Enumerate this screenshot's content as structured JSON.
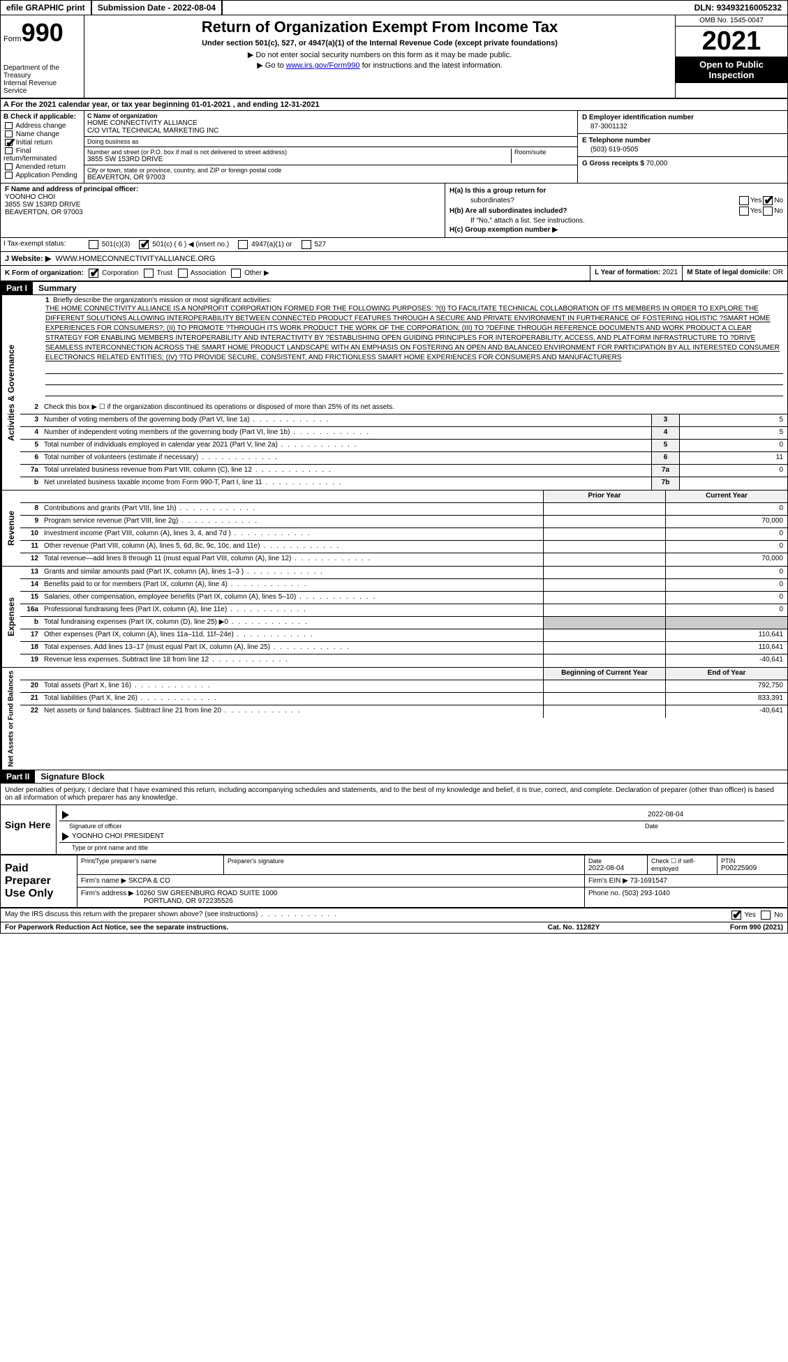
{
  "topbar": {
    "efile": "efile GRAPHIC print",
    "submission_label": "Submission Date - ",
    "submission_date": "2022-08-04",
    "dln_label": "DLN: ",
    "dln": "93493216005232"
  },
  "header": {
    "form_label": "Form",
    "form_number": "990",
    "dept": "Department of the Treasury\nInternal Revenue Service",
    "title": "Return of Organization Exempt From Income Tax",
    "subtitle": "Under section 501(c), 527, or 4947(a)(1) of the Internal Revenue Code (except private foundations)",
    "instr1": "▶ Do not enter social security numbers on this form as it may be made public.",
    "instr2_pre": "▶ Go to ",
    "instr2_link": "www.irs.gov/Form990",
    "instr2_post": " for instructions and the latest information.",
    "omb": "OMB No. 1545-0047",
    "year": "2021",
    "inspection": "Open to Public Inspection"
  },
  "row_a": "A For the 2021 calendar year, or tax year beginning 01-01-2021    , and ending 12-31-2021",
  "section_b": {
    "head": "B Check if applicable:",
    "items": [
      "Address change",
      "Name change",
      "Initial return",
      "Final return/terminated",
      "Amended return",
      "Application Pending"
    ],
    "checked_index": 2
  },
  "section_c": {
    "name_label": "C Name of organization",
    "name1": "HOME CONNECTIVITY ALLIANCE",
    "name2": "C/O VITAL TECHNICAL MARKETING INC",
    "dba_label": "Doing business as",
    "dba": "",
    "addr_label": "Number and street (or P.O. box if mail is not delivered to street address)",
    "addr": "3855 SW 153RD DRIVE",
    "room_label": "Room/suite",
    "room": "",
    "city_label": "City or town, state or province, country, and ZIP or foreign postal code",
    "city": "BEAVERTON, OR  97003"
  },
  "section_d": {
    "label": "D Employer identification number",
    "val": "87-3001132"
  },
  "section_e": {
    "label": "E Telephone number",
    "val": "(503) 619-0505"
  },
  "section_g": {
    "label": "G Gross receipts $ ",
    "val": "70,000"
  },
  "section_f": {
    "label": "F  Name and address of principal officer:",
    "name": "YOONHO CHOI",
    "addr1": "3855 SW 153RD DRIVE",
    "addr2": "BEAVERTON, OR  97003"
  },
  "section_h": {
    "ha_label": "H(a)  Is this a group return for",
    "ha_label2": "subordinates?",
    "hb_label": "H(b)  Are all subordinates included?",
    "hb_note": "If \"No,\" attach a list. See instructions.",
    "hc_label": "H(c)  Group exemption number ▶",
    "yes": "Yes",
    "no": "No"
  },
  "row_i": {
    "label": "I    Tax-exempt status:",
    "opts": [
      "501(c)(3)",
      "501(c) ( 6 ) ◀ (insert no.)",
      "4947(a)(1) or",
      "527"
    ],
    "checked": 1
  },
  "row_j": {
    "label": "J   Website: ▶",
    "val": "WWW.HOMECONNECTIVITYALLIANCE.ORG"
  },
  "row_k": {
    "label": "K Form of organization:",
    "opts": [
      "Corporation",
      "Trust",
      "Association",
      "Other ▶"
    ],
    "checked": 0
  },
  "row_l": {
    "label": "L Year of formation: ",
    "val": "2021"
  },
  "row_m": {
    "label": "M State of legal domicile: ",
    "val": "OR"
  },
  "part1": {
    "head": "Part I",
    "title": "Summary"
  },
  "line1": {
    "num": "1",
    "label": "Briefly describe the organization's mission or most significant activities:",
    "text": "THE HOME CONNECTIVITY ALLIANCE IS A NONPROFIT CORPORATION FORMED FOR THE FOLLOWING PURPOSES: ?(I) TO FACILITATE TECHNICAL COLLABORATION OF ITS MEMBERS IN ORDER TO EXPLORE THE DIFFERENT SOLUTIONS ALLOWING INTEROPERABILITY BETWEEN CONNECTED PRODUCT FEATURES THROUGH A SECURE AND PRIVATE ENVIRONMENT IN FURTHERANCE OF FOSTERING HOLISTIC ?SMART HOME EXPERIENCES FOR CONSUMERS?; (II) TO PROMOTE ?THROUGH ITS WORK PRODUCT THE WORK OF THE CORPORATION; (III) TO ?DEFINE THROUGH REFERENCE DOCUMENTS AND WORK PRODUCT A CLEAR STRATEGY FOR ENABLING MEMBERS INTEROPERABILITY AND INTERACTIVITY BY ?ESTABLISHING OPEN GUIDING PRINCIPLES FOR INTEROPERABILITY, ACCESS, AND PLATFORM INFRASTRUCTURE TO ?DRIVE SEAMLESS INTERCONNECTION ACROSS THE SMART HOME PRODUCT LANDSCAPE WITH AN EMPHASIS ON FOSTERING AN OPEN AND BALANCED ENVIRONMENT FOR PARTICIPATION BY ALL INTERESTED CONSUMER ELECTRONICS RELATED ENTITIES; (IV) ?TO PROVIDE SECURE, CONSISTENT, AND FRICTIONLESS SMART HOME EXPERIENCES FOR CONSUMERS AND MANUFACTURERS"
  },
  "line2": {
    "num": "2",
    "label": "Check this box ▶ ☐ if the organization discontinued its operations or disposed of more than 25% of its net assets."
  },
  "gov_lines": [
    {
      "num": "3",
      "label": "Number of voting members of the governing body (Part VI, line 1a)",
      "box": "3",
      "val": "5"
    },
    {
      "num": "4",
      "label": "Number of independent voting members of the governing body (Part VI, line 1b)",
      "box": "4",
      "val": "5"
    },
    {
      "num": "5",
      "label": "Total number of individuals employed in calendar year 2021 (Part V, line 2a)",
      "box": "5",
      "val": "0"
    },
    {
      "num": "6",
      "label": "Total number of volunteers (estimate if necessary)",
      "box": "6",
      "val": "11"
    },
    {
      "num": "7a",
      "label": "Total unrelated business revenue from Part VIII, column (C), line 12",
      "box": "7a",
      "val": "0"
    },
    {
      "num": "b",
      "label": "Net unrelated business taxable income from Form 990-T, Part I, line 11",
      "box": "7b",
      "val": ""
    }
  ],
  "col_headers": {
    "prior": "Prior Year",
    "current": "Current Year"
  },
  "revenue_lines": [
    {
      "num": "8",
      "label": "Contributions and grants (Part VIII, line 1h)",
      "prior": "",
      "current": "0"
    },
    {
      "num": "9",
      "label": "Program service revenue (Part VIII, line 2g)",
      "prior": "",
      "current": "70,000"
    },
    {
      "num": "10",
      "label": "Investment income (Part VIII, column (A), lines 3, 4, and 7d )",
      "prior": "",
      "current": "0"
    },
    {
      "num": "11",
      "label": "Other revenue (Part VIII, column (A), lines 5, 6d, 8c, 9c, 10c, and 11e)",
      "prior": "",
      "current": "0"
    },
    {
      "num": "12",
      "label": "Total revenue—add lines 8 through 11 (must equal Part VIII, column (A), line 12)",
      "prior": "",
      "current": "70,000"
    }
  ],
  "expense_lines": [
    {
      "num": "13",
      "label": "Grants and similar amounts paid (Part IX, column (A), lines 1–3 )",
      "prior": "",
      "current": "0"
    },
    {
      "num": "14",
      "label": "Benefits paid to or for members (Part IX, column (A), line 4)",
      "prior": "",
      "current": "0"
    },
    {
      "num": "15",
      "label": "Salaries, other compensation, employee benefits (Part IX, column (A), lines 5–10)",
      "prior": "",
      "current": "0"
    },
    {
      "num": "16a",
      "label": "Professional fundraising fees (Part IX, column (A), line 11e)",
      "prior": "",
      "current": "0"
    },
    {
      "num": "b",
      "label": "Total fundraising expenses (Part IX, column (D), line 25) ▶0",
      "prior": "shade",
      "current": "shade"
    },
    {
      "num": "17",
      "label": "Other expenses (Part IX, column (A), lines 11a–11d, 11f–24e)",
      "prior": "",
      "current": "110,641"
    },
    {
      "num": "18",
      "label": "Total expenses. Add lines 13–17 (must equal Part IX, column (A), line 25)",
      "prior": "",
      "current": "110,641"
    },
    {
      "num": "19",
      "label": "Revenue less expenses. Subtract line 18 from line 12",
      "prior": "",
      "current": "-40,641"
    }
  ],
  "net_headers": {
    "begin": "Beginning of Current Year",
    "end": "End of Year"
  },
  "net_lines": [
    {
      "num": "20",
      "label": "Total assets (Part X, line 16)",
      "begin": "",
      "end": "792,750"
    },
    {
      "num": "21",
      "label": "Total liabilities (Part X, line 26)",
      "begin": "",
      "end": "833,391"
    },
    {
      "num": "22",
      "label": "Net assets or fund balances. Subtract line 21 from line 20",
      "begin": "",
      "end": "-40,641"
    }
  ],
  "part2": {
    "head": "Part II",
    "title": "Signature Block"
  },
  "sig_decl": "Under penalties of perjury, I declare that I have examined this return, including accompanying schedules and statements, and to the best of my knowledge and belief, it is true, correct, and complete. Declaration of preparer (other than officer) is based on all information of which preparer has any knowledge.",
  "sign": {
    "left": "Sign Here",
    "date": "2022-08-04",
    "sig_label": "Signature of officer",
    "date_label": "Date",
    "name": "YOONHO CHOI PRESIDENT",
    "name_label": "Type or print name and title"
  },
  "paid": {
    "left": "Paid Preparer Use Only",
    "r1": {
      "c1_label": "Print/Type preparer's name",
      "c1": "",
      "c2_label": "Preparer's signature",
      "c2": "",
      "c3_label": "Date",
      "c3": "2022-08-04",
      "c4_label": "Check ☐ if self-employed",
      "c5_label": "PTIN",
      "c5": "P00225909"
    },
    "r2": {
      "firm_label": "Firm's name    ▶",
      "firm": "SKCPA & CO",
      "ein_label": "Firm's EIN ▶",
      "ein": "73-1691547"
    },
    "r3": {
      "addr_label": "Firm's address ▶",
      "addr1": "10260 SW GREENBURG ROAD SUITE 1000",
      "addr2": "PORTLAND, OR  972235526",
      "phone_label": "Phone no. ",
      "phone": "(503) 293-1040"
    }
  },
  "footer": {
    "discuss": "May the IRS discuss this return with the preparer shown above? (see instructions)",
    "yes": "Yes",
    "no": "No"
  },
  "bottom": {
    "left": "For Paperwork Reduction Act Notice, see the separate instructions.",
    "center": "Cat. No. 11282Y",
    "right": "Form 990 (2021)"
  },
  "side_labels": {
    "gov": "Activities & Governance",
    "rev": "Revenue",
    "exp": "Expenses",
    "net": "Net Assets or Fund Balances"
  }
}
